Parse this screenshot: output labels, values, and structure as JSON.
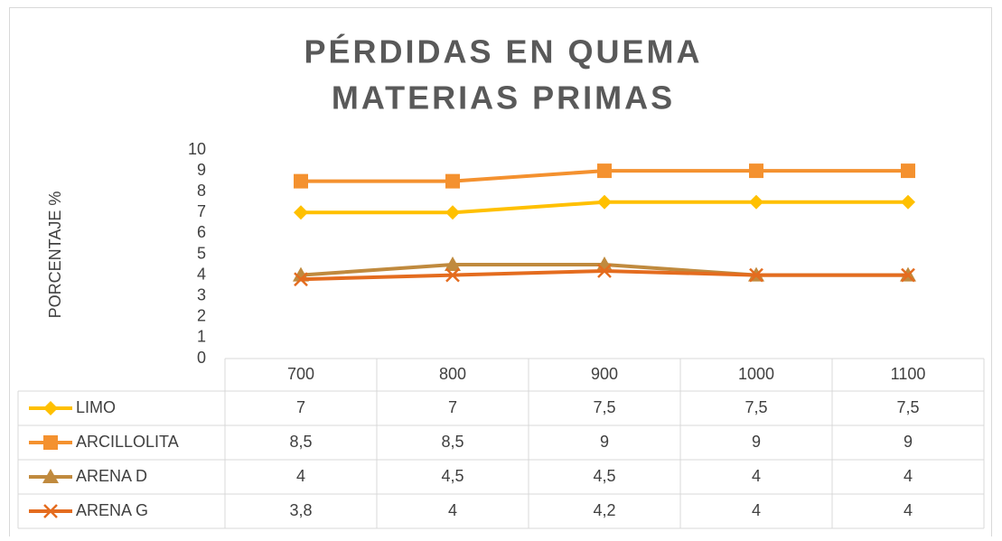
{
  "chart_data": {
    "type": "line",
    "title": [
      "PÉRDIDAS EN QUEMA",
      "MATERIAS PRIMAS"
    ],
    "y_label": "PORCENTAJE  %",
    "categories": [
      "700",
      "800",
      "900",
      "1000",
      "1100"
    ],
    "series": [
      {
        "name": "LIMO",
        "color": "#ffc000",
        "marker": "diamond",
        "values": [
          7,
          7,
          7.5,
          7.5,
          7.5
        ],
        "value_labels": [
          "7",
          "7",
          "7,5",
          "7,5",
          "7,5"
        ]
      },
      {
        "name": "ARCILLOLITA",
        "color": "#f4912f",
        "marker": "square",
        "values": [
          8.5,
          8.5,
          9,
          9,
          9
        ],
        "value_labels": [
          "8,5",
          "8,5",
          "9",
          "9",
          "9"
        ]
      },
      {
        "name": "ARENA D",
        "color": "#c08a3e",
        "marker": "triangle",
        "values": [
          4,
          4.5,
          4.5,
          4,
          4
        ],
        "value_labels": [
          "4",
          "4,5",
          "4,5",
          "4",
          "4"
        ]
      },
      {
        "name": "ARENA G",
        "color": "#e46c1f",
        "marker": "x",
        "values": [
          3.8,
          4,
          4.2,
          4,
          4
        ],
        "value_labels": [
          "3,8",
          "4",
          "4,2",
          "4",
          "4"
        ]
      }
    ],
    "ylim": [
      0,
      10
    ],
    "yticks": [
      0,
      1,
      2,
      3,
      4,
      5,
      6,
      7,
      8,
      9,
      10
    ],
    "grid": false,
    "data_table": true
  }
}
